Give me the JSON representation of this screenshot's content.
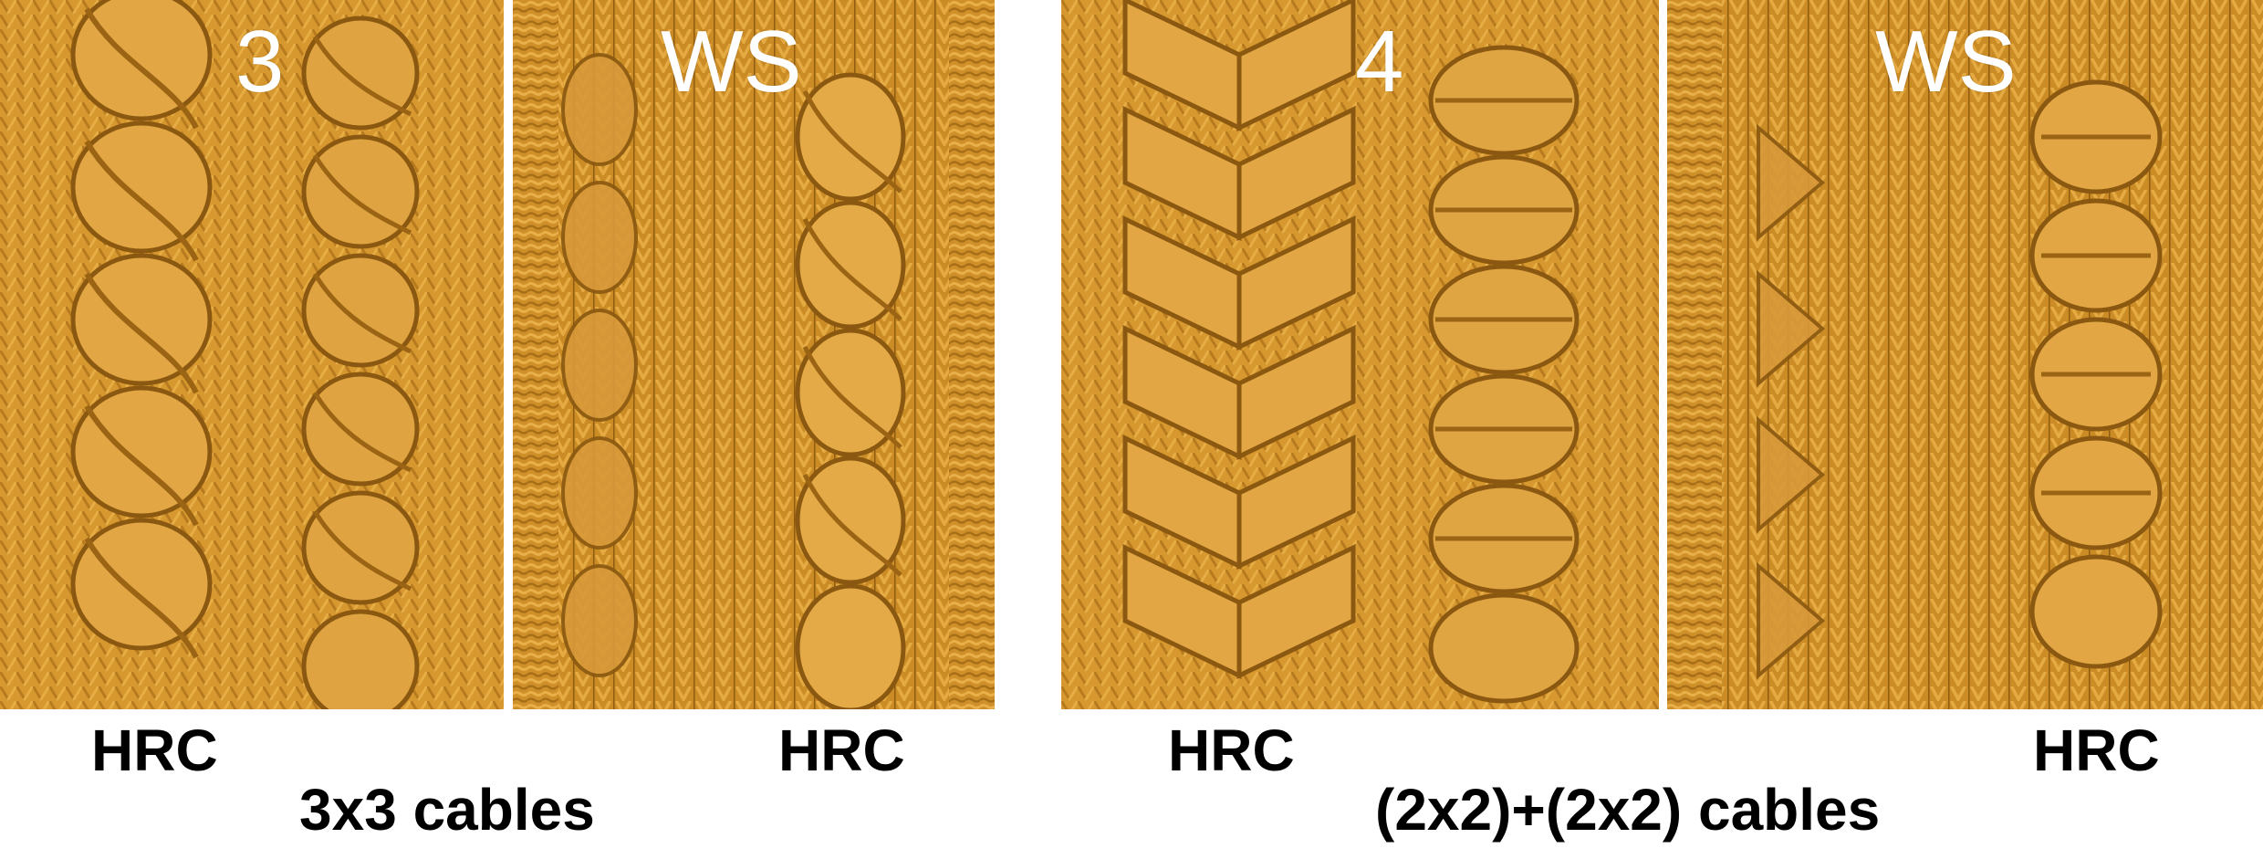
{
  "colors": {
    "yarn": "#d6982f",
    "yarn_dark": "#9a6414",
    "yarn_light": "#f0c45c",
    "background": "#ffffff",
    "label_white": "#ffffff",
    "caption_black": "#000000"
  },
  "groups": [
    {
      "title": "3x3 cables",
      "panels": [
        {
          "label": "3",
          "caption": "HRC"
        },
        {
          "label": "WS",
          "caption": "HRC"
        }
      ]
    },
    {
      "title": "(2x2)+(2x2) cables",
      "panels": [
        {
          "label": "4",
          "caption": "HRC"
        },
        {
          "label": "WS",
          "caption": "HRC"
        }
      ]
    }
  ]
}
